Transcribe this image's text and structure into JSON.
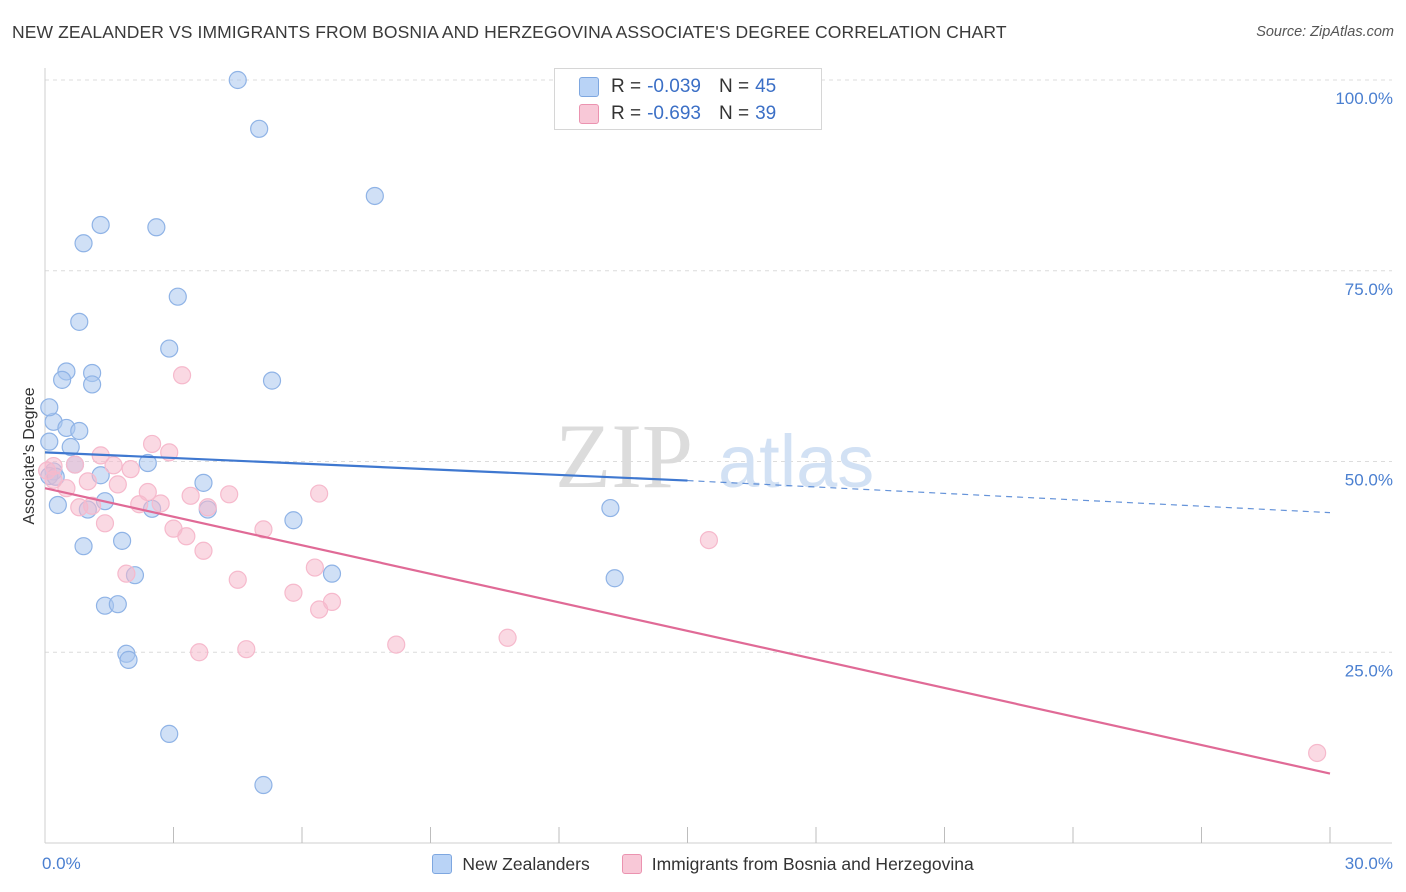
{
  "title": "NEW ZEALANDER VS IMMIGRANTS FROM BOSNIA AND HERZEGOVINA ASSOCIATE'S DEGREE CORRELATION CHART",
  "source": "Source: ZipAtlas.com",
  "watermark": {
    "zip": "ZIP",
    "atlas": "atlas"
  },
  "stats": {
    "r_label": "R =",
    "n_label": "N =",
    "series1": {
      "r": "-0.039",
      "n": "45"
    },
    "series2": {
      "r": "-0.693",
      "n": "39"
    }
  },
  "legend": {
    "series1": "New Zealanders",
    "series2": "Immigrants from Bosnia and Herzegovina"
  },
  "colors": {
    "series1_fill": "#a9c7ef",
    "series1_line": "#3f78d0",
    "series2_fill": "#f6b9cc",
    "series2_line": "#e06a96",
    "tick_text": "#4a7fd0",
    "grid": "#dcdcdc"
  },
  "chart_data": {
    "type": "scatter",
    "title": "NEW ZEALANDER VS IMMIGRANTS FROM BOSNIA AND HERZEGOVINA ASSOCIATE'S DEGREE CORRELATION CHART",
    "xlabel": "",
    "ylabel": "Associate's Degree",
    "xlim": [
      0,
      30
    ],
    "ylim": [
      0,
      100
    ],
    "x_tick_labels": [
      "0.0%",
      "30.0%"
    ],
    "y_ticks": [
      25,
      50,
      75,
      100
    ],
    "y_tick_labels": [
      "25.0%",
      "50.0%",
      "75.0%",
      "100.0%"
    ],
    "grid": true,
    "series": [
      {
        "name": "New Zealanders",
        "points": [
          [
            4.5,
            100.0
          ],
          [
            5.0,
            93.6
          ],
          [
            7.7,
            84.8
          ],
          [
            1.3,
            81.0
          ],
          [
            2.6,
            80.7
          ],
          [
            0.9,
            78.6
          ],
          [
            3.1,
            71.6
          ],
          [
            0.8,
            68.3
          ],
          [
            2.9,
            64.8
          ],
          [
            0.5,
            61.8
          ],
          [
            1.1,
            61.6
          ],
          [
            0.4,
            60.7
          ],
          [
            1.1,
            60.1
          ],
          [
            5.3,
            60.6
          ],
          [
            0.2,
            55.2
          ],
          [
            0.1,
            57.1
          ],
          [
            0.5,
            54.4
          ],
          [
            0.8,
            54.0
          ],
          [
            0.6,
            51.9
          ],
          [
            0.1,
            52.6
          ],
          [
            2.4,
            49.8
          ],
          [
            0.7,
            49.6
          ],
          [
            0.2,
            48.7
          ],
          [
            0.1,
            48.1
          ],
          [
            1.3,
            48.2
          ],
          [
            3.7,
            47.2
          ],
          [
            1.4,
            44.8
          ],
          [
            0.3,
            44.3
          ],
          [
            1.0,
            43.7
          ],
          [
            2.5,
            43.8
          ],
          [
            3.8,
            43.7
          ],
          [
            5.8,
            42.3
          ],
          [
            13.2,
            43.9
          ],
          [
            1.8,
            39.6
          ],
          [
            0.9,
            38.9
          ],
          [
            2.1,
            35.1
          ],
          [
            6.7,
            35.3
          ],
          [
            13.3,
            34.7
          ],
          [
            1.4,
            31.1
          ],
          [
            1.7,
            31.3
          ],
          [
            1.9,
            24.8
          ],
          [
            1.95,
            24.0
          ],
          [
            2.9,
            14.3
          ],
          [
            5.1,
            7.6
          ],
          [
            0.25,
            48.0
          ]
        ]
      },
      {
        "name": "Immigrants from Bosnia and Herzegovina",
        "points": [
          [
            3.2,
            61.3
          ],
          [
            2.5,
            52.3
          ],
          [
            2.9,
            51.2
          ],
          [
            0.2,
            49.4
          ],
          [
            0.7,
            49.6
          ],
          [
            0.05,
            48.8
          ],
          [
            1.3,
            50.8
          ],
          [
            1.6,
            49.5
          ],
          [
            2.0,
            49.0
          ],
          [
            0.2,
            47.6
          ],
          [
            1.0,
            47.4
          ],
          [
            1.7,
            47.0
          ],
          [
            0.5,
            46.5
          ],
          [
            2.4,
            46.0
          ],
          [
            3.4,
            45.5
          ],
          [
            4.3,
            45.7
          ],
          [
            6.4,
            45.8
          ],
          [
            0.8,
            44.0
          ],
          [
            1.1,
            44.2
          ],
          [
            2.2,
            44.4
          ],
          [
            2.7,
            44.5
          ],
          [
            3.8,
            44.0
          ],
          [
            1.4,
            41.9
          ],
          [
            3.0,
            41.2
          ],
          [
            5.1,
            41.1
          ],
          [
            3.3,
            40.2
          ],
          [
            3.7,
            38.3
          ],
          [
            15.5,
            39.7
          ],
          [
            6.3,
            36.1
          ],
          [
            1.9,
            35.3
          ],
          [
            4.5,
            34.5
          ],
          [
            5.8,
            32.8
          ],
          [
            6.7,
            31.6
          ],
          [
            6.4,
            30.6
          ],
          [
            10.8,
            26.9
          ],
          [
            8.2,
            26.0
          ],
          [
            3.6,
            25.0
          ],
          [
            4.7,
            25.4
          ],
          [
            29.7,
            11.8
          ]
        ]
      }
    ],
    "trend_lines": [
      {
        "series": "New Zealanders",
        "x": [
          0,
          15
        ],
        "y": [
          51.2,
          47.5
        ],
        "dashed_extension_to": [
          30,
          43.3
        ]
      },
      {
        "series": "Immigrants from Bosnia and Herzegovina",
        "x": [
          0,
          30
        ],
        "y": [
          46.5,
          9.1
        ]
      }
    ]
  }
}
